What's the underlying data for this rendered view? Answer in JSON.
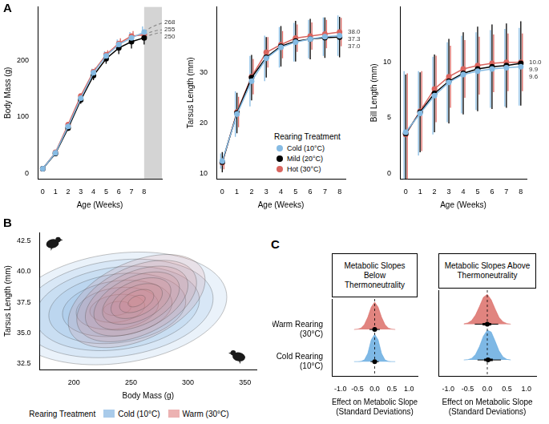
{
  "chart_data": [
    {
      "panel": "A",
      "type": "line",
      "x_label": "Age (Weeks)",
      "y_label": "Body Mass (g)",
      "x": [
        0,
        1,
        2,
        3,
        4,
        5,
        6,
        7,
        8
      ],
      "xlim": [
        -0.4,
        9.4
      ],
      "xticks": [
        0,
        1,
        2,
        3,
        4,
        5,
        6,
        7,
        8
      ],
      "ylim": [
        -10,
        295
      ],
      "yticks": [
        0,
        100,
        200
      ],
      "shaded_region": [
        8,
        9.4
      ],
      "marker": "circle",
      "series": [
        {
          "name": "Cold (10°C)",
          "color": "#86bbe3",
          "values": [
            8,
            36,
            83,
            133,
            178,
            208,
            228,
            240,
            250
          ],
          "error": [
            2,
            3,
            5,
            6,
            7,
            8,
            9,
            10,
            10
          ],
          "projection": {
            "x": [
              8,
              8.5,
              9,
              9.4
            ],
            "values": [
              250,
              258,
              263,
              266
            ],
            "line_style": "dashed"
          },
          "end_label": 268
        },
        {
          "name": "Mild (20°C)",
          "color": "#000000",
          "values": [
            8,
            35,
            80,
            130,
            173,
            203,
            222,
            233,
            240
          ],
          "error": [
            2,
            3,
            5,
            7,
            8,
            9,
            11,
            12,
            12
          ],
          "projection": {
            "x": [
              8,
              8.5,
              9,
              9.4
            ],
            "values": [
              240,
              245,
              248,
              249
            ],
            "line_style": "dashed"
          },
          "end_label": 250
        },
        {
          "name": "Hot (30°C)",
          "color": "#d9655f",
          "values": [
            8,
            37,
            86,
            137,
            180,
            210,
            230,
            243,
            245
          ],
          "error": [
            2,
            3,
            5,
            6,
            7,
            8,
            9,
            9,
            9
          ],
          "projection": {
            "x": [
              8,
              8.5,
              9,
              9.4
            ],
            "values": [
              245,
              250,
              253,
              254
            ],
            "line_style": "dashed"
          },
          "end_label": 255
        }
      ]
    },
    {
      "panel": "A",
      "type": "line",
      "x_label": "Age (Weeks)",
      "y_label": "Tarsus Length (mm)",
      "x": [
        0,
        1,
        2,
        3,
        4,
        5,
        6,
        7,
        8
      ],
      "xlim": [
        -0.4,
        8.4
      ],
      "xticks": [
        0,
        1,
        2,
        3,
        4,
        5,
        6,
        7,
        8
      ],
      "ylim": [
        9,
        43
      ],
      "yticks": [
        10,
        20,
        30
      ],
      "marker": "circle",
      "legend": "lower right",
      "legend_title": "Rearing Treatment",
      "series": [
        {
          "name": "Cold (10°C)",
          "color": "#86bbe3",
          "values": [
            12.5,
            21.8,
            28.3,
            32.8,
            35.0,
            36.0,
            36.6,
            37.1,
            37.3
          ],
          "error": [
            1.5,
            4.5,
            5,
            4.5,
            4,
            3.8,
            3.8,
            3.8,
            4
          ],
          "end_label": 37.3
        },
        {
          "name": "Mild (20°C)",
          "color": "#000000",
          "values": [
            12.3,
            22.0,
            29.0,
            33.0,
            35.2,
            36.2,
            36.6,
            36.9,
            37.0
          ],
          "error": [
            2,
            4,
            4.5,
            4,
            4,
            4,
            4,
            4,
            4
          ],
          "end_label": {
            "value": 37,
            "label": "37.0"
          }
        },
        {
          "name": "Hot (30°C)",
          "color": "#d9655f",
          "values": [
            12.2,
            22.2,
            29.2,
            34.0,
            35.5,
            36.8,
            37.2,
            37.6,
            38.0
          ],
          "error": [
            1.3,
            3,
            3.5,
            3,
            2.7,
            2.7,
            2.7,
            2.8,
            2.8
          ],
          "end_label": {
            "value": 38,
            "label": "38.0"
          }
        }
      ]
    },
    {
      "panel": "A",
      "type": "line",
      "x_label": "Age (Weeks)",
      "y_label": "Bill Length (mm)",
      "x": [
        0,
        1,
        2,
        3,
        4,
        5,
        6,
        7,
        8
      ],
      "xlim": [
        -0.4,
        8.4
      ],
      "xticks": [
        0,
        1,
        2,
        3,
        4,
        5,
        6,
        7,
        8
      ],
      "ylim": [
        -0.5,
        15
      ],
      "yticks": [
        0,
        5,
        10
      ],
      "marker": "circle",
      "series": [
        {
          "name": "Cold (10°C)",
          "color": "#86bbe3",
          "values": [
            3.7,
            5.4,
            7.0,
            8.2,
            8.9,
            9.2,
            9.4,
            9.5,
            9.6
          ],
          "error": [
            5.5,
            3.8,
            3.5,
            3.6,
            3.5,
            3.5,
            3.5,
            3.5,
            3.5
          ],
          "end_label": 9.6
        },
        {
          "name": "Mild (20°C)",
          "color": "#000000",
          "values": [
            3.6,
            5.5,
            7.2,
            8.3,
            9.0,
            9.4,
            9.6,
            9.7,
            9.9
          ],
          "error": [
            5.3,
            3.6,
            3.5,
            3.8,
            3.7,
            3.8,
            3.8,
            3.8,
            3.8
          ],
          "end_label": 9.9
        },
        {
          "name": "Hot (30°C)",
          "color": "#d9655f",
          "values": [
            3.5,
            5.6,
            7.6,
            8.7,
            9.4,
            9.7,
            9.9,
            10.0,
            10.0
          ],
          "error": [
            5.5,
            3.6,
            3.0,
            2.8,
            2.6,
            2.6,
            2.6,
            2.6,
            2.6
          ],
          "end_label": {
            "value": 10,
            "label": "10.0"
          }
        }
      ]
    },
    {
      "panel": "B",
      "type": "contour",
      "x_label": "Body Mass (g)",
      "y_label": "Tarsus Length (mm)",
      "xlim": [
        170,
        360
      ],
      "xticks": [
        200,
        250,
        300,
        350
      ],
      "ylim": [
        32,
        43.2
      ],
      "yticks": [
        32.5,
        {
          "value": 35,
          "label": "35.0"
        },
        37.5,
        {
          "value": 40,
          "label": "40.0"
        },
        42.5
      ],
      "levels": [
        0.25,
        0.5,
        0.75,
        1.0,
        1.25,
        1.5,
        1.75,
        2.0
      ],
      "legend": "bottom",
      "legend_title": "Rearing Treatment",
      "series": [
        {
          "name": "Cold (10°C)",
          "color": "#6fa8dc",
          "mean": [
            238,
            37.0
          ],
          "sd": [
            48,
            2.3
          ],
          "correlation": 0.2
        },
        {
          "name": "Warm (30°C)",
          "color": "#e07f7f",
          "mean": [
            255,
            37.6
          ],
          "sd": [
            30,
            1.9
          ],
          "correlation": 0.45
        }
      ]
    },
    {
      "panel": "C",
      "type": "density",
      "title": "Metabolic Slopes Below Thermoneutrality",
      "x_label": "Effect on Metabolic Slope (Standard Deviations)",
      "categories": [
        "Warm Rearing (30°C)",
        "Cold Rearing (10°C)"
      ],
      "x": [
        -0.6,
        -0.5,
        -0.4,
        -0.3,
        -0.2,
        -0.1,
        0,
        0.1,
        0.2,
        0.3,
        0.4,
        0.5,
        0.6
      ],
      "xlim": [
        -1.25,
        1.25
      ],
      "xticks": [
        {
          "value": -1,
          "label": "-1.0"
        },
        -0.5,
        {
          "value": 0,
          "label": "0.0"
        },
        0.5,
        {
          "value": 1,
          "label": "1.0"
        }
      ],
      "reference_line": 0,
      "series": [
        {
          "name": "Warm Rearing (30°C)",
          "color": "#d9655f",
          "density": [
            0,
            0.01,
            0.05,
            0.18,
            0.45,
            0.82,
            1,
            0.82,
            0.45,
            0.18,
            0.05,
            0.01,
            0
          ],
          "estimate": 0,
          "inner_interval": [
            -0.06,
            0.06
          ],
          "outer_interval": [
            -0.15,
            0.15
          ]
        },
        {
          "name": "Cold Rearing (10°C)",
          "color": "#5ea6de",
          "density": [
            0,
            0,
            0.01,
            0.06,
            0.3,
            0.8,
            1,
            0.8,
            0.3,
            0.06,
            0.01,
            0,
            0
          ],
          "estimate": 0,
          "inner_interval": [
            -0.04,
            0.04
          ],
          "outer_interval": [
            -0.12,
            0.12
          ]
        }
      ]
    },
    {
      "type": "density",
      "title": "Metabolic Slopes Above Thermoneutrality",
      "x_label": "Effect on Metabolic Slope (Standard Deviations)",
      "categories": [
        "Warm Rearing (30°C)",
        "Cold Rearing (10°C)"
      ],
      "x": [
        -0.6,
        -0.5,
        -0.4,
        -0.3,
        -0.2,
        -0.1,
        0,
        0.1,
        0.2,
        0.3,
        0.4,
        0.5,
        0.6
      ],
      "xlim": [
        -1.25,
        1.25
      ],
      "xticks": [
        {
          "value": -1,
          "label": "-1.0"
        },
        -0.5,
        {
          "value": 0,
          "label": "0.0"
        },
        0.5,
        {
          "value": 1,
          "label": "1.0"
        }
      ],
      "reference_line": 0,
      "tick_labels": "x",
      "series": [
        {
          "name": "Warm Rearing (30°C)",
          "color": "#d9655f",
          "density": [
            0.01,
            0.04,
            0.12,
            0.3,
            0.58,
            0.88,
            0.98,
            0.8,
            0.5,
            0.22,
            0.08,
            0.02,
            0
          ],
          "estimate": 0,
          "inner_interval": [
            -0.12,
            0.1
          ],
          "outer_interval": [
            -0.32,
            0.28
          ]
        },
        {
          "name": "Cold Rearing (10°C)",
          "color": "#5ea6de",
          "density": [
            0,
            0.01,
            0.05,
            0.18,
            0.44,
            0.78,
            0.98,
            0.92,
            0.62,
            0.3,
            0.1,
            0.02,
            0
          ],
          "estimate": 0.02,
          "inner_interval": [
            -0.08,
            0.14
          ],
          "outer_interval": [
            -0.25,
            0.35
          ]
        }
      ]
    }
  ]
}
